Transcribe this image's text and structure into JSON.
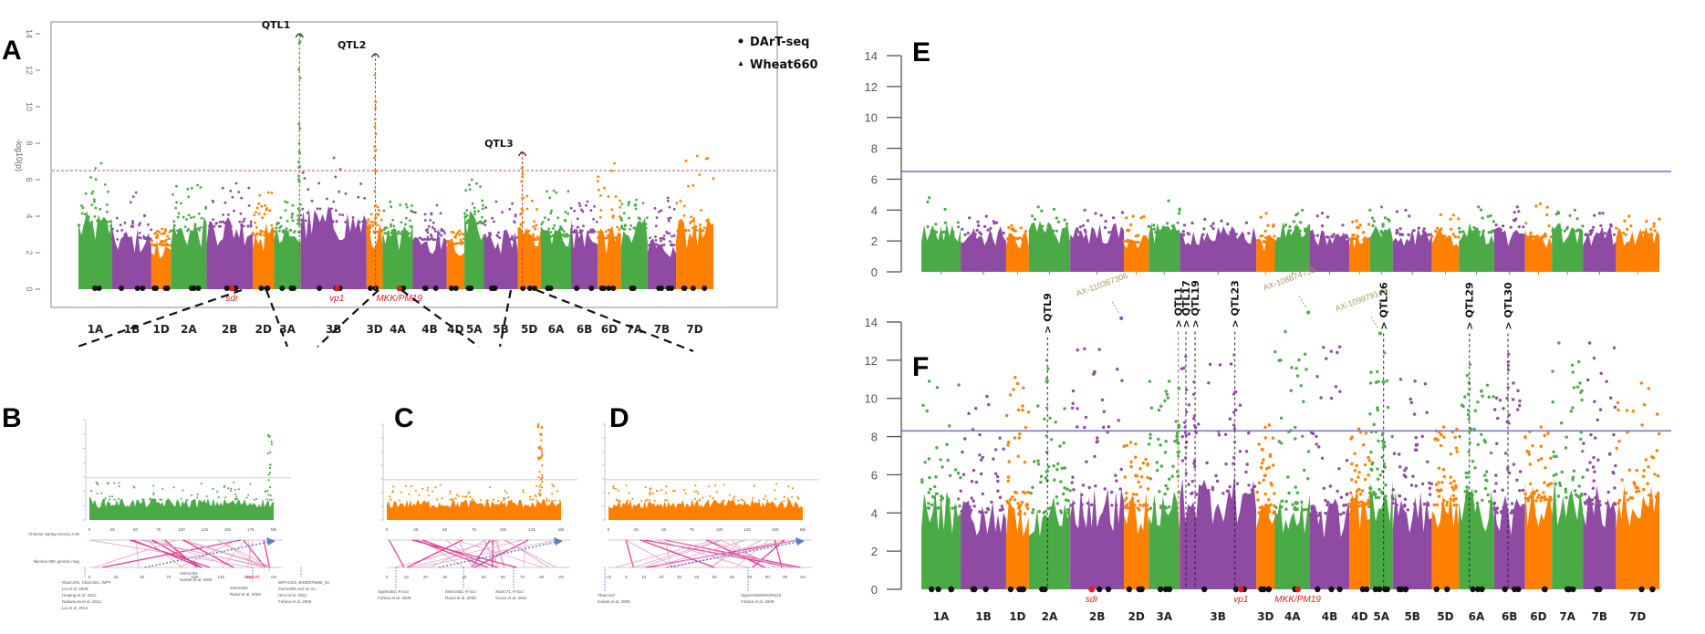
{
  "figure": {
    "colors": {
      "green": "#4aab46",
      "purple": "#8f4aa3",
      "orange": "#ff8000",
      "threshold_A": "#d0709a",
      "threshold_EF": "#7d78c8",
      "marker_red": "#e02020",
      "snp_label": "#a09a60",
      "dot": "#111111"
    },
    "chromosomes": [
      "1A",
      "1B",
      "1D",
      "2A",
      "2B",
      "2D",
      "3A",
      "3B",
      "3D",
      "4A",
      "4B",
      "4D",
      "5A",
      "5B",
      "5D",
      "6A",
      "6B",
      "6D",
      "7A",
      "7B",
      "7D"
    ],
    "chromosome_colors": [
      "green",
      "purple",
      "orange",
      "green",
      "purple",
      "orange",
      "green",
      "purple",
      "orange",
      "green",
      "purple",
      "orange",
      "green",
      "purple",
      "orange",
      "green",
      "purple",
      "orange",
      "green",
      "purple",
      "orange"
    ],
    "chromosome_relative_lengths": [
      0.95,
      1.1,
      0.55,
      1.0,
      1.3,
      0.6,
      0.75,
      1.85,
      0.45,
      0.85,
      0.95,
      0.5,
      0.55,
      0.95,
      0.65,
      0.85,
      0.75,
      0.65,
      0.75,
      0.8,
      1.05
    ]
  },
  "chart_data": [
    {
      "panel": "A",
      "type": "scatter",
      "subtype": "manhattan",
      "title": "",
      "xlabel": "",
      "ylabel": "-log10(p)",
      "ylim": [
        0,
        14
      ],
      "yticks": [
        0,
        2,
        4,
        6,
        8,
        10,
        12,
        14
      ],
      "threshold": 6.5,
      "threshold_style": "dashed",
      "legend": {
        "position": "top-right",
        "entries": [
          {
            "symbol": "circle",
            "label": "DArT-seq"
          },
          {
            "symbol": "triangle",
            "label": "Wheat660"
          }
        ]
      },
      "chromosome_baseline_max": [
        4.3,
        3.4,
        3.0,
        4.0,
        4.3,
        3.7,
        3.9,
        4.6,
        3.9,
        3.8,
        3.4,
        3.1,
        4.5,
        3.4,
        3.4,
        3.6,
        3.9,
        3.5,
        4.1,
        3.0,
        4.0
      ],
      "peak_values": [
        6.9,
        5.3,
        3.3,
        5.7,
        5.8,
        5.3,
        4.8,
        7.2,
        4.5,
        4.8,
        4.6,
        3.2,
        6.0,
        4.8,
        5.1,
        5.4,
        4.8,
        6.9,
        4.9,
        5.0,
        7.3
      ],
      "qtls": [
        {
          "label": "QTL1",
          "chromosome": "3A",
          "pos": 0.95,
          "peak": 14.0
        },
        {
          "label": "QTL2",
          "chromosome": "3D",
          "pos": 0.55,
          "peak": 12.9
        },
        {
          "label": "QTL3",
          "chromosome": "5D",
          "pos": 0.2,
          "peak": 7.5
        }
      ],
      "known_genes": [
        {
          "label": "sdr",
          "chromosome": "2B",
          "pos": 0.55
        },
        {
          "label": "vp1",
          "chromosome": "3B",
          "pos": 0.55
        },
        {
          "label": "MKK/PM19",
          "chromosome": "4A",
          "pos": 0.55
        }
      ]
    },
    {
      "panel": "B",
      "type": "scatter",
      "subtype": "regional-manhattan",
      "color": "green",
      "xlabel_upper": "Mb",
      "xticks_upper": [
        "0",
        "25",
        "50",
        "75",
        "100",
        "125",
        "150",
        "175",
        "Mb"
      ],
      "xticks_lower": [
        "0",
        "25",
        "50",
        "75",
        "100",
        "125",
        "150",
        "cM"
      ],
      "map_labels": [
        "Chinese Spring Survey 2.00",
        "Illumina 90K genetic map"
      ],
      "threshold": 6.5,
      "annotations": [
        {
          "text": [
            "Xbarc294, Xbarc321, WPT",
            "Liu et al. 2008;",
            "Heiping et al. 2011;",
            "Nakamura et al. 2011;",
            "Liu et al. 2014"
          ]
        },
        {
          "text": [
            "Xwmc264",
            "Kulwal et al. 2005"
          ]
        },
        {
          "text": [
            "Xwmc594",
            "Rasul et al. 2009"
          ]
        },
        {
          "text": [
            "mykAR"
          ],
          "red": true
        },
        {
          "text": [
            "WPt-9422, BS00075598_51,",
            "Xwmc594 and so on.",
            "Himi et al. 2011;",
            "Fofana et al. 2009"
          ]
        }
      ]
    },
    {
      "panel": "C",
      "type": "scatter",
      "subtype": "regional-manhattan",
      "color": "orange",
      "xticks_upper": [
        "0",
        "25",
        "50",
        "75",
        "100",
        "125",
        "Mb"
      ],
      "xticks_lower": [
        "0",
        "10",
        "20",
        "30",
        "40",
        "50",
        "60",
        "70",
        "80",
        "cM"
      ],
      "threshold": 6.5,
      "annotations": [
        {
          "text": [
            "Xgwm383, R-loci",
            "Fofana et al. 2009"
          ]
        },
        {
          "text": [
            "Xwmc552, R-loci",
            "Rasul et al. 2009"
          ]
        },
        {
          "text": [
            "Xbarc71, R-loci",
            "Groos et al. 2002"
          ]
        }
      ]
    },
    {
      "panel": "D",
      "type": "scatter",
      "subtype": "regional-manhattan",
      "color": "orange",
      "xticks_upper": [
        "0",
        "25",
        "50",
        "75",
        "100",
        "125",
        "150",
        "Mb"
      ],
      "xticks_lower": [
        "-10",
        "0",
        "10",
        "20",
        "30",
        "40",
        "50",
        "60",
        "70",
        "80",
        "90",
        "cM"
      ],
      "threshold": 6.5,
      "annotations": [
        {
          "text": [
            "Xbarc347",
            "Kulwal et al. 2005"
          ]
        },
        {
          "text": [
            "Xgwm405/MKK/PM19",
            "Fofana et al. 2009"
          ]
        }
      ]
    },
    {
      "panel": "E",
      "type": "scatter",
      "subtype": "manhattan",
      "ylim": [
        0,
        14
      ],
      "yticks": [
        0,
        2,
        4,
        6,
        8,
        10,
        12,
        14
      ],
      "threshold": 6.5,
      "threshold_style": "solid",
      "chromosome_baseline_max": [
        3.2,
        3.0,
        2.6,
        3.3,
        3.2,
        2.4,
        3.2,
        3.0,
        2.4,
        3.3,
        2.8,
        2.6,
        3.1,
        3.0,
        2.8,
        3.2,
        3.0,
        2.8,
        3.3,
        3.0,
        3.0
      ],
      "peak_values": [
        4.8,
        3.6,
        3.0,
        4.2,
        4.0,
        3.6,
        4.6,
        3.4,
        3.8,
        4.0,
        3.8,
        3.3,
        4.2,
        4.0,
        3.7,
        4.2,
        4.2,
        4.4,
        4.0,
        3.8,
        3.6
      ]
    },
    {
      "panel": "F",
      "type": "scatter",
      "subtype": "manhattan",
      "ylim": [
        0,
        14
      ],
      "yticks": [
        0,
        2,
        4,
        6,
        8,
        10,
        12,
        14
      ],
      "threshold": 8.3,
      "threshold_style": "solid",
      "xtick_labels": [
        "1A",
        "1B",
        "1D",
        "2A",
        "2B",
        "2D",
        "3A",
        "3B",
        "3D",
        "4A",
        "4B",
        "4D",
        "5A",
        "5B",
        "5D",
        "6A",
        "6B",
        "6D",
        "7A",
        "7B",
        "7D"
      ],
      "chromosome_baseline_max": [
        5.3,
        5.0,
        4.9,
        5.0,
        5.5,
        5.2,
        5.3,
        6.2,
        5.0,
        5.2,
        4.8,
        5.4,
        6.0,
        5.2,
        5.5,
        5.5,
        5.0,
        5.8,
        6.0,
        5.5,
        5.6
      ],
      "peak_values": [
        10.9,
        10.1,
        11.1,
        9.6,
        12.6,
        7.7,
        10.9,
        11.8,
        8.6,
        13.5,
        12.7,
        8.4,
        11.4,
        11.0,
        8.5,
        11.2,
        10.8,
        8.5,
        12.9,
        12.9,
        10.8
      ],
      "qtls": [
        {
          "label": "QTL9",
          "chromosome": "2A",
          "pos": 0.45,
          "peak": 13.2,
          "highlight": false
        },
        {
          "label": "QTL1",
          "chromosome": "3A",
          "pos": 0.95,
          "peak": 13.5,
          "highlight": true
        },
        {
          "label": "QTL17",
          "chromosome": "3B",
          "pos": 0.08,
          "peak": 13.5,
          "highlight": false
        },
        {
          "label": "QTL19",
          "chromosome": "3B",
          "pos": 0.2,
          "peak": 13.5,
          "highlight": false
        },
        {
          "label": "QTL23",
          "chromosome": "3B",
          "pos": 0.72,
          "peak": 13.5,
          "highlight": false
        },
        {
          "label": "QTL26",
          "chromosome": "5A",
          "pos": 0.6,
          "peak": 13.4,
          "highlight": false
        },
        {
          "label": "QTL29",
          "chromosome": "6A",
          "pos": 0.3,
          "peak": 13.4,
          "highlight": false
        },
        {
          "label": "QTL30",
          "chromosome": "6B",
          "pos": 0.45,
          "peak": 13.4,
          "highlight": false
        }
      ],
      "snp_annotations": [
        {
          "label": "AX-110367306",
          "chromosome": "2B",
          "pos": 0.95,
          "value": 14.2
        },
        {
          "label": "AX-108874755",
          "chromosome": "4A",
          "pos": 0.95,
          "value": 14.5
        },
        {
          "label": "AX-109979143",
          "chromosome": "5A",
          "pos": 0.45,
          "value": 13.4
        }
      ],
      "known_genes": [
        {
          "label": "sdr",
          "chromosome": "2B",
          "pos": 0.4
        },
        {
          "label": "vp1",
          "chromosome": "3B",
          "pos": 0.8
        },
        {
          "label": "MKK/PM19",
          "chromosome": "4A",
          "pos": 0.65
        }
      ]
    }
  ]
}
